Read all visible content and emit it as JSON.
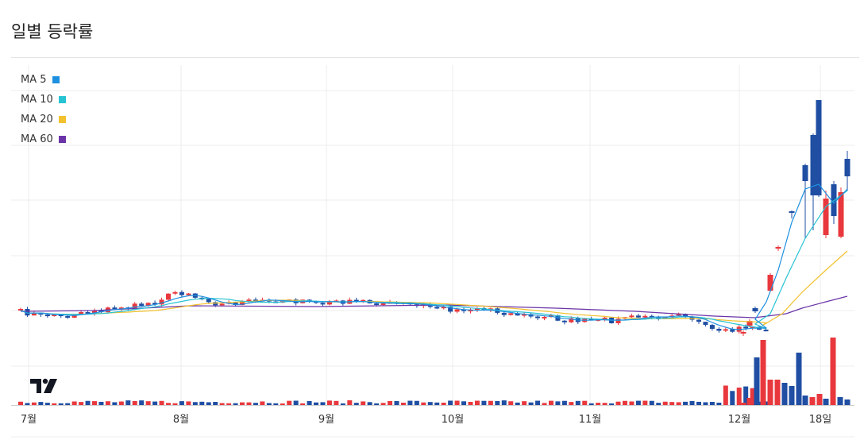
{
  "page": {
    "title": "일별 등락률"
  },
  "legend": [
    {
      "label": "MA 5",
      "color": "#1e90e0"
    },
    {
      "label": "MA 10",
      "color": "#27c3d3"
    },
    {
      "label": "MA 20",
      "color": "#f2c12e"
    },
    {
      "label": "MA 60",
      "color": "#6a34a8"
    }
  ],
  "logo": {
    "icon": "tradingview-logo-icon"
  },
  "chart_data": {
    "type": "candlestick",
    "title": "일별 등락률",
    "x_ticks": [
      "7월",
      "8월",
      "9월",
      "10월",
      "11월",
      "12월",
      "18일"
    ],
    "up_color": "#e8383d",
    "down_color": "#1f4ea3",
    "grid": true,
    "legend_position": "top-left",
    "legend": [
      "MA 5",
      "MA 10",
      "MA 20",
      "MA 60"
    ],
    "y_axis_labels_visible": false
  }
}
